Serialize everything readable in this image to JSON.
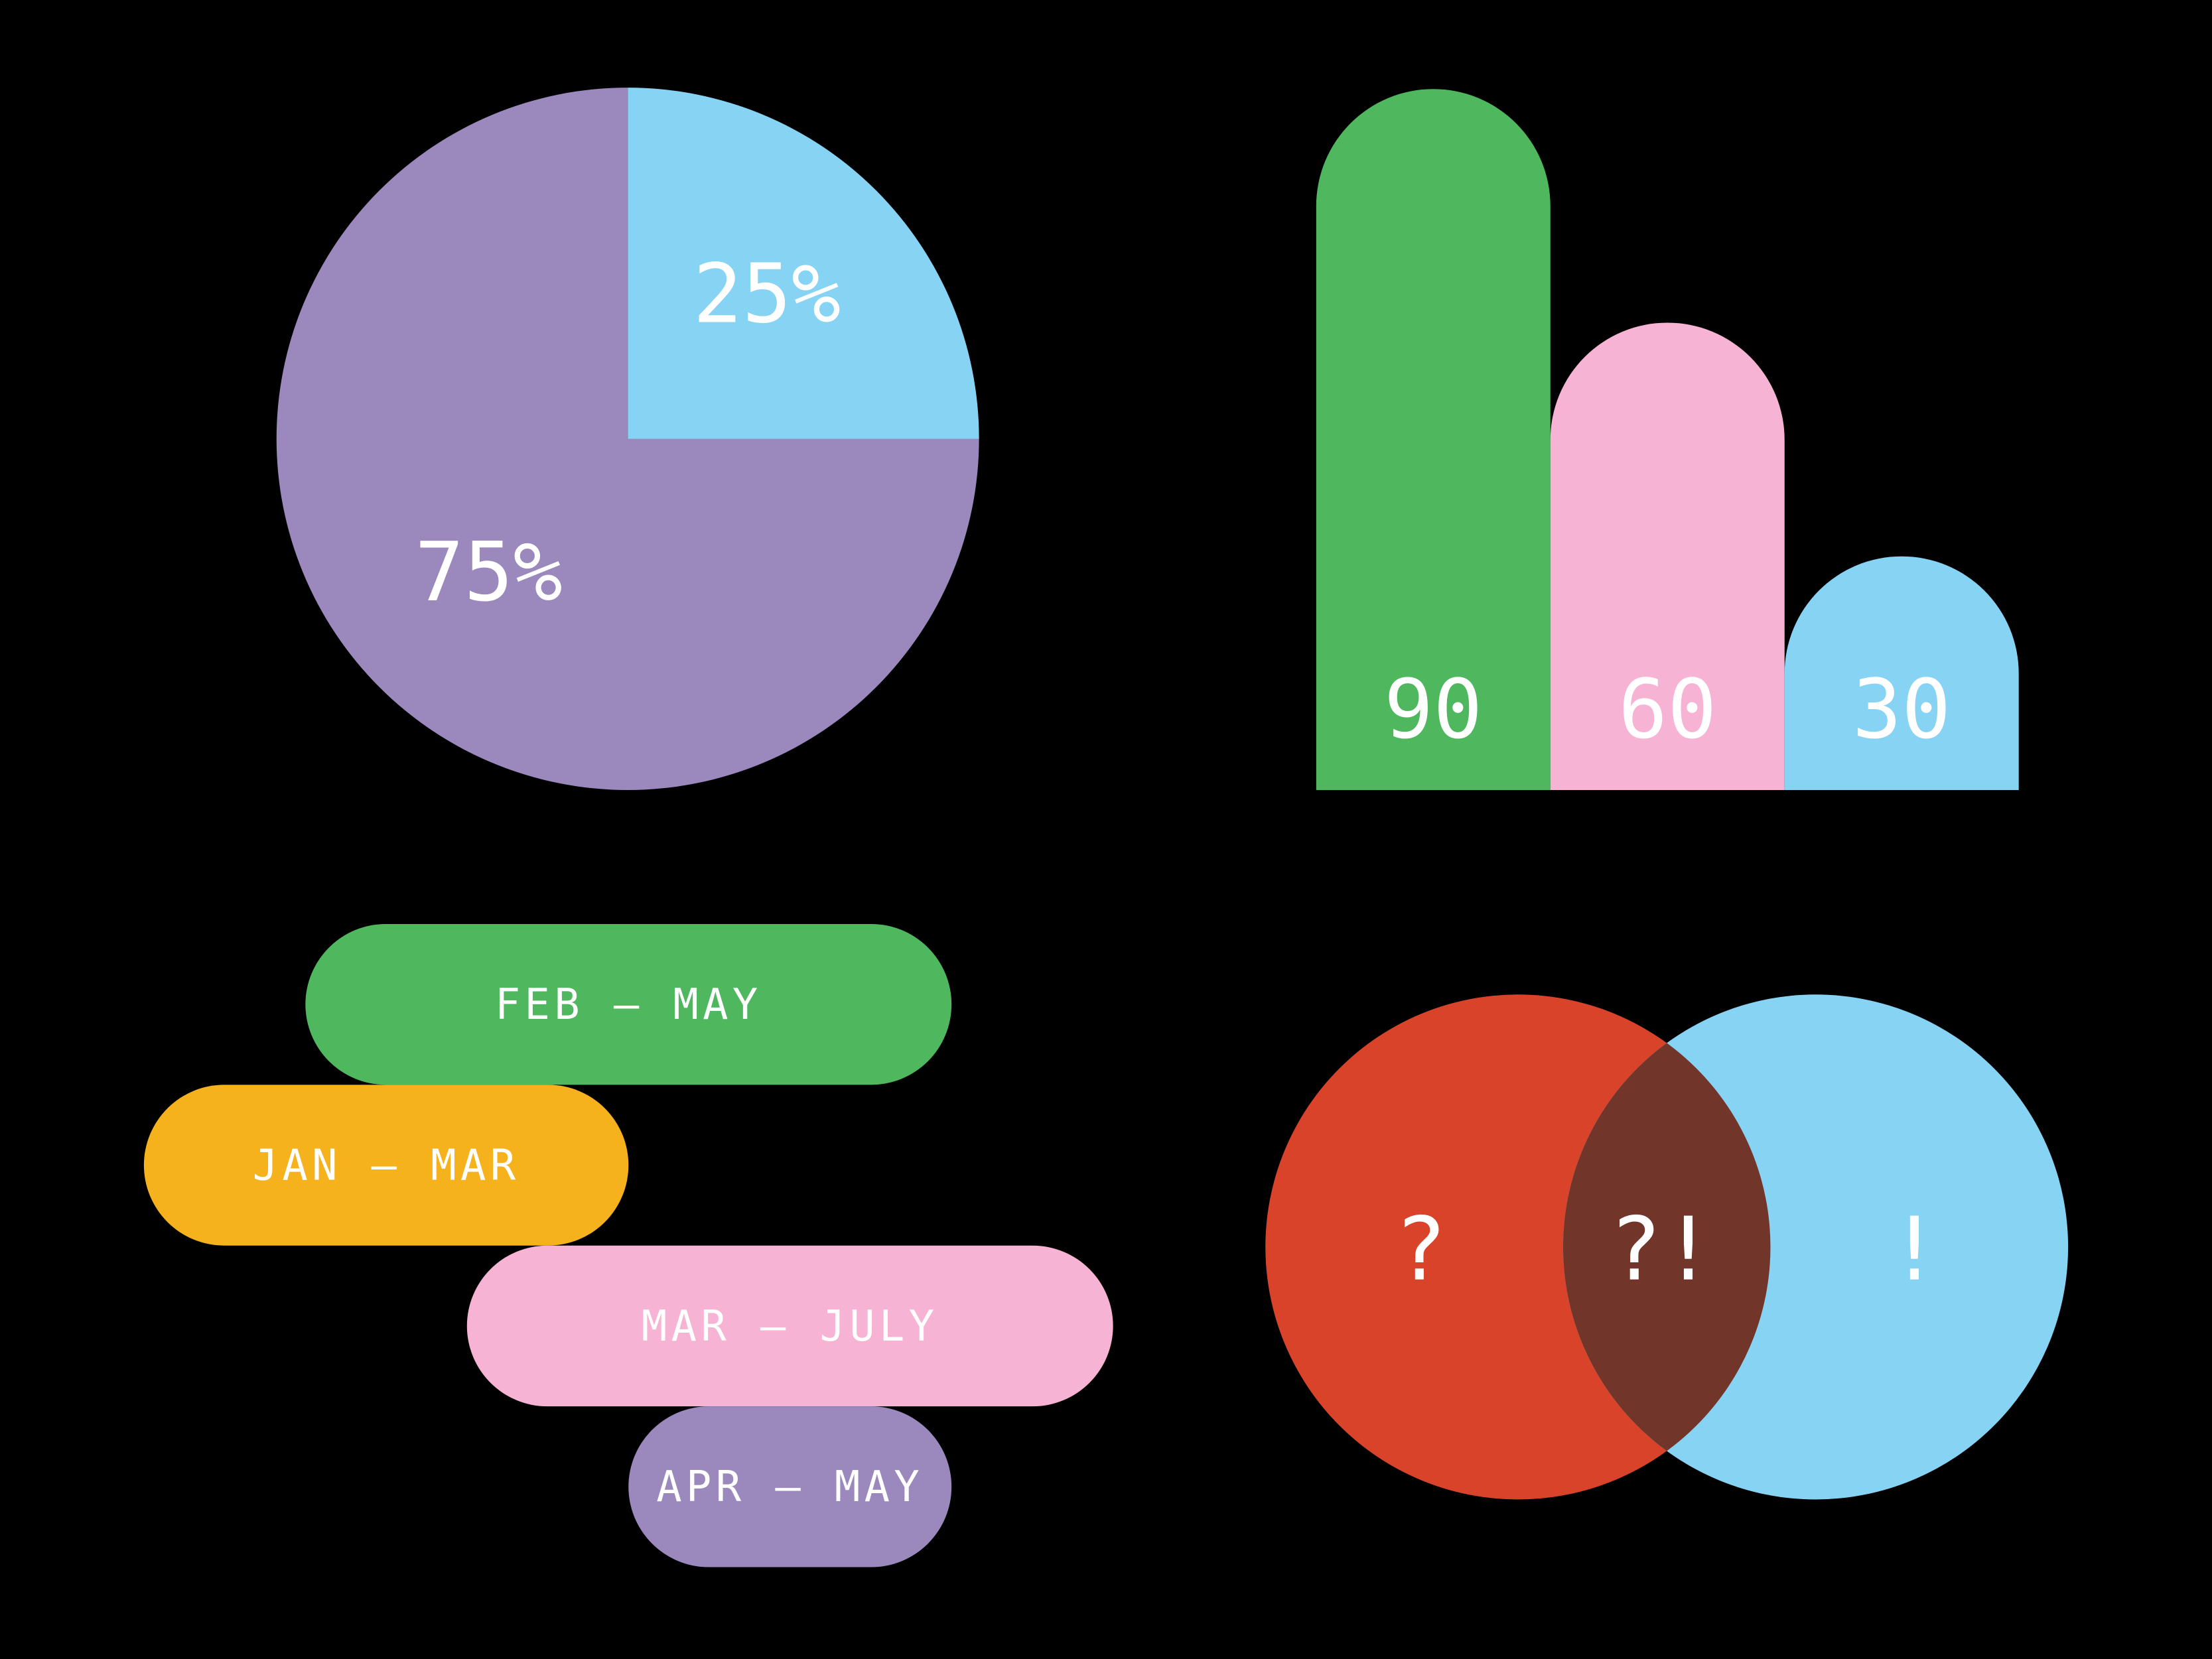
{
  "chart_data": [
    {
      "type": "pie",
      "values": [
        25,
        75
      ],
      "value_labels": [
        "25%",
        "75%"
      ],
      "colors": [
        "#87d3f4",
        "#9b88bd"
      ]
    },
    {
      "type": "bar",
      "values": [
        90,
        60,
        30
      ],
      "colors": [
        "#4fb75e",
        "#f7b3d3",
        "#87d3f4"
      ]
    },
    {
      "type": "timeline",
      "categories": [
        "FEB – MAY",
        "JAN – MAR",
        "MAR – JULY",
        "APR – MAY"
      ],
      "start": [
        2,
        1,
        3,
        4
      ],
      "end": [
        6,
        4,
        7,
        6
      ],
      "colors": [
        "#4fb75e",
        "#f6b21c",
        "#f7b3d3",
        "#9b88bd"
      ]
    },
    {
      "type": "venn",
      "sets": [
        {
          "label": "?",
          "color": "#d9432a"
        },
        {
          "label": "!",
          "color": "#87d3f4"
        }
      ],
      "intersection": {
        "label": "?!",
        "color": "#72352a"
      }
    }
  ]
}
